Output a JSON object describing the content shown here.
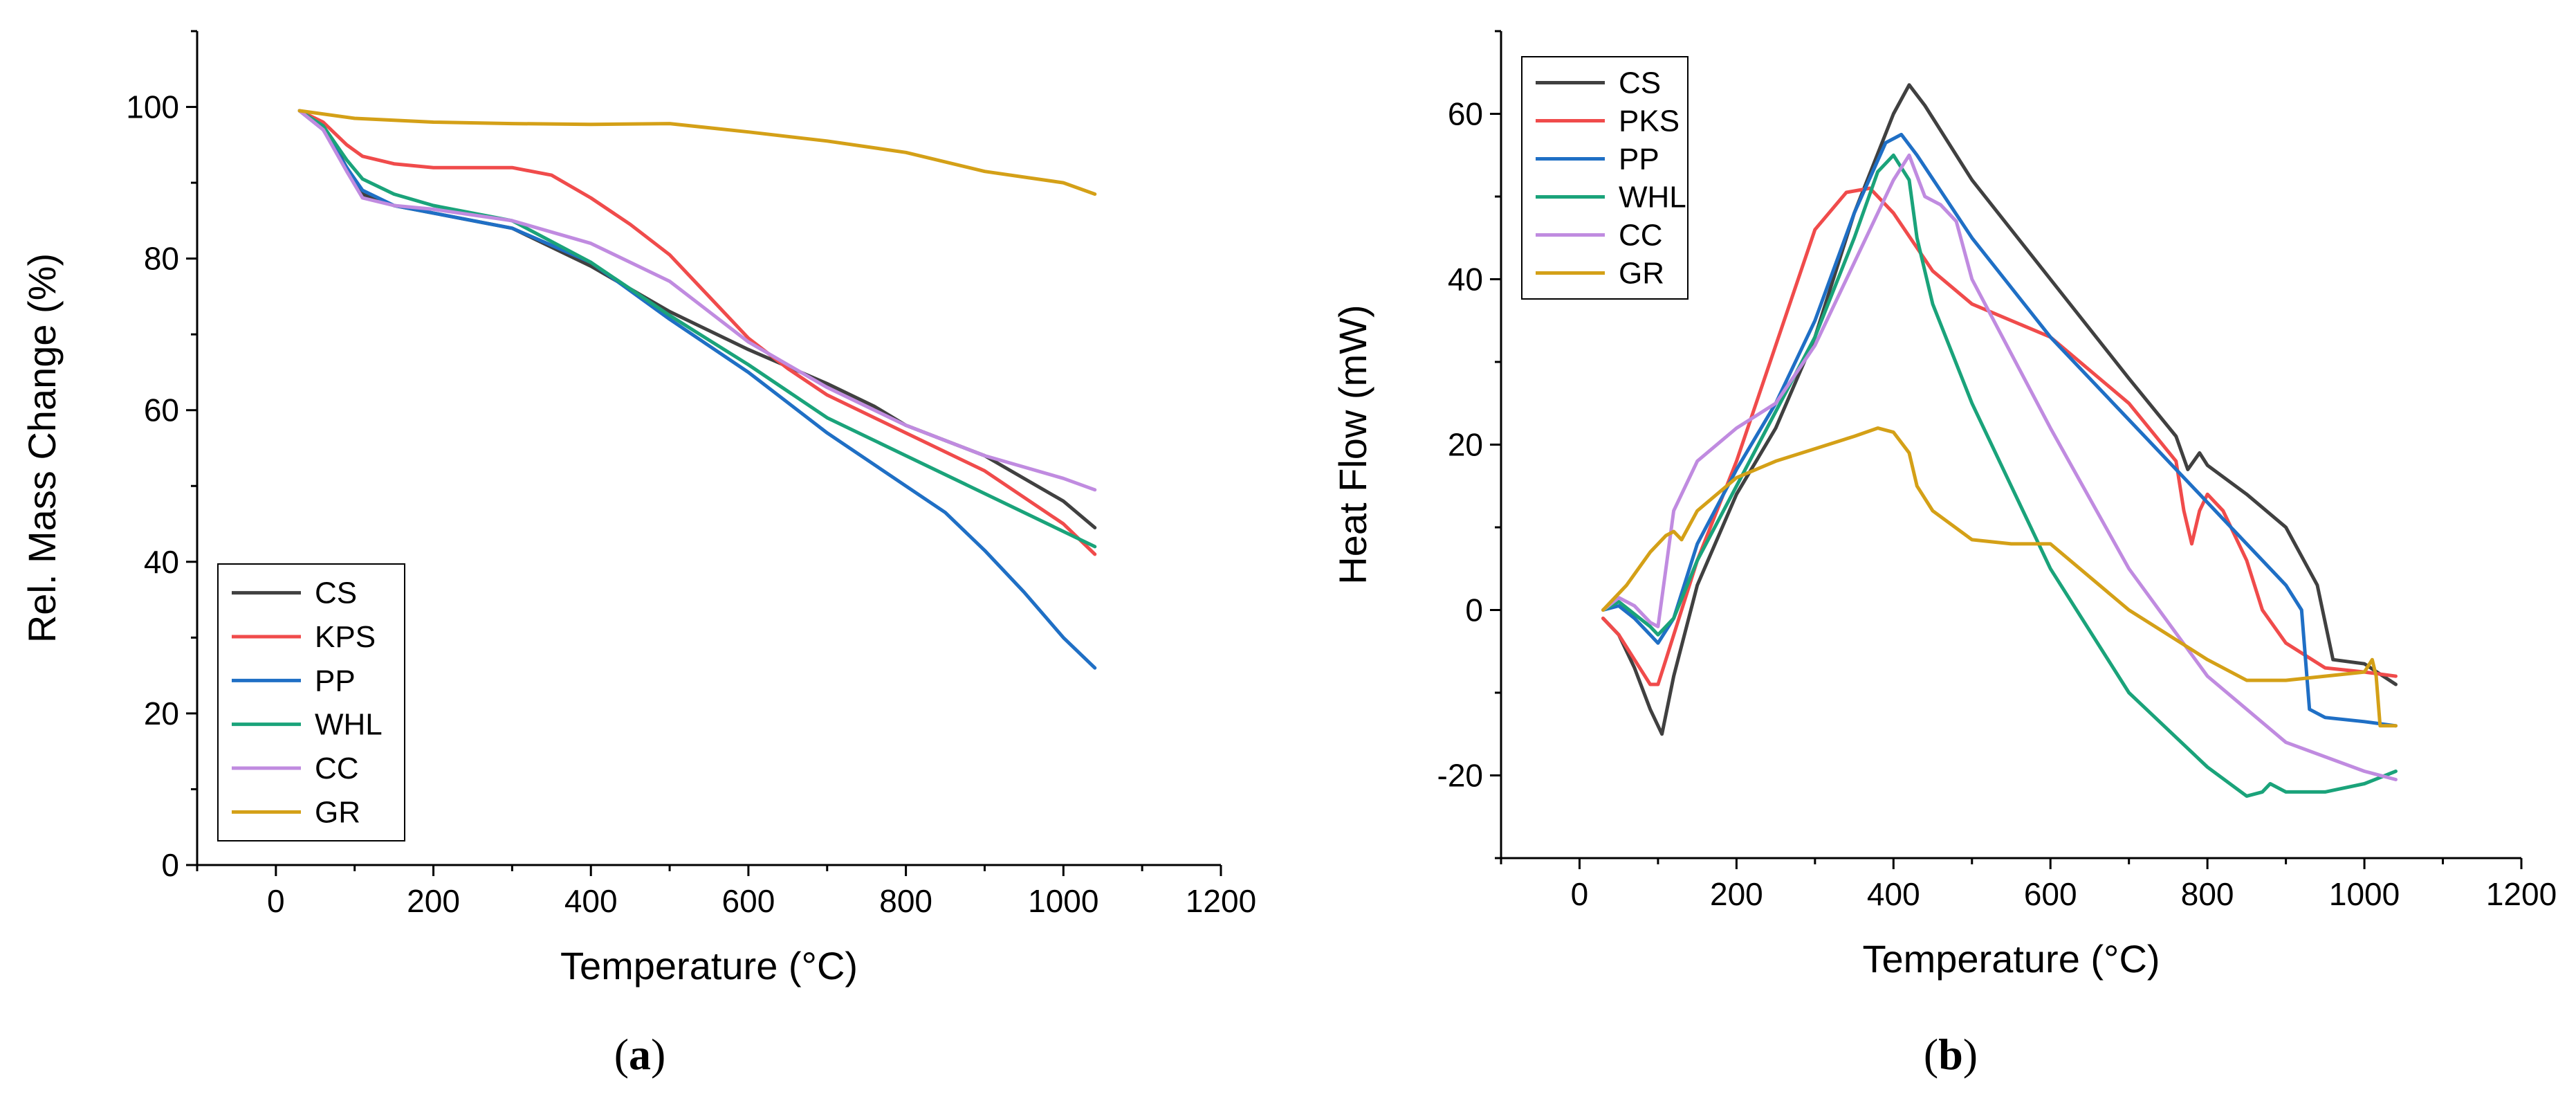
{
  "colors": {
    "CS": "#404040",
    "KPS": "#f04b4b",
    "PKS": "#f04b4b",
    "PP": "#1f6fc5",
    "WHL": "#1aa37a",
    "CC": "#c08be0",
    "GR": "#d4a017"
  },
  "chart_data": [
    {
      "type": "line",
      "panel_label": "a",
      "title": "",
      "xlabel": "Temperature (°C)",
      "ylabel": "Rel. Mass Change (%)",
      "xlim": [
        -100,
        1200
      ],
      "ylim": [
        0,
        110
      ],
      "xticks": [
        0,
        200,
        400,
        600,
        800,
        1000,
        1200
      ],
      "yticks": [
        0,
        20,
        40,
        60,
        80,
        100
      ],
      "legend": "bottom-left",
      "series": [
        {
          "name": "CS",
          "x": [
            30,
            60,
            90,
            110,
            150,
            200,
            300,
            400,
            500,
            600,
            700,
            760,
            800,
            900,
            1000,
            1040
          ],
          "y": [
            99.5,
            97.5,
            92,
            88.5,
            87,
            86,
            84,
            79,
            73,
            68,
            63.5,
            60.5,
            58,
            54,
            48,
            44.5
          ]
        },
        {
          "name": "KPS",
          "x": [
            30,
            60,
            90,
            110,
            150,
            200,
            300,
            350,
            400,
            450,
            500,
            550,
            600,
            650,
            700,
            800,
            900,
            1000,
            1040
          ],
          "y": [
            99.5,
            98,
            95,
            93.5,
            92.5,
            92,
            92,
            91,
            88,
            84.5,
            80.5,
            75,
            69.5,
            65.5,
            62,
            57,
            52,
            45,
            41
          ]
        },
        {
          "name": "PP",
          "x": [
            30,
            60,
            90,
            110,
            150,
            200,
            300,
            400,
            500,
            600,
            700,
            800,
            850,
            900,
            950,
            1000,
            1040
          ],
          "y": [
            99.5,
            97,
            92,
            89,
            87,
            86,
            84,
            79.5,
            72,
            65,
            57,
            50,
            46.5,
            41.5,
            36,
            30,
            26
          ]
        },
        {
          "name": "WHL",
          "x": [
            30,
            60,
            90,
            110,
            150,
            200,
            300,
            400,
            500,
            600,
            700,
            800,
            900,
            1000,
            1040
          ],
          "y": [
            99.5,
            97.5,
            93,
            90.5,
            88.5,
            87,
            85,
            79.5,
            72.5,
            66,
            59,
            54,
            49,
            44,
            42
          ]
        },
        {
          "name": "CC",
          "x": [
            30,
            60,
            90,
            110,
            150,
            200,
            300,
            400,
            500,
            600,
            700,
            800,
            900,
            1000,
            1040
          ],
          "y": [
            99.5,
            97,
            91.5,
            88,
            87,
            86.5,
            85,
            82,
            77,
            69,
            63,
            58,
            54,
            51,
            49.5
          ]
        },
        {
          "name": "GR",
          "x": [
            30,
            100,
            200,
            300,
            400,
            500,
            600,
            700,
            800,
            900,
            1000,
            1040
          ],
          "y": [
            99.5,
            98.5,
            98,
            97.8,
            97.7,
            97.8,
            96.7,
            95.5,
            94,
            91.5,
            90,
            88.5
          ]
        }
      ]
    },
    {
      "type": "line",
      "panel_label": "b",
      "title": "",
      "xlabel": "Temperature (°C)",
      "ylabel": "Heat Flow (mW)",
      "xlim": [
        -100,
        1200
      ],
      "ylim": [
        -30,
        70
      ],
      "xticks": [
        0,
        200,
        400,
        600,
        800,
        1000,
        1200
      ],
      "yticks": [
        -20,
        0,
        20,
        40,
        60
      ],
      "legend": "top-left",
      "series": [
        {
          "name": "CS",
          "x": [
            30,
            50,
            70,
            90,
            105,
            120,
            150,
            200,
            250,
            300,
            350,
            400,
            420,
            440,
            500,
            600,
            700,
            760,
            775,
            790,
            800,
            850,
            900,
            940,
            960,
            1000,
            1040
          ],
          "y": [
            -1,
            -3,
            -7,
            -12,
            -15,
            -8,
            3,
            14,
            22,
            33,
            48,
            60,
            63.5,
            61,
            52,
            40,
            28,
            21,
            17,
            19,
            17.5,
            14,
            10,
            3,
            -6,
            -6.5,
            -9
          ]
        },
        {
          "name": "PKS",
          "x": [
            30,
            50,
            70,
            90,
            100,
            110,
            130,
            150,
            200,
            250,
            300,
            340,
            370,
            400,
            450,
            500,
            600,
            700,
            760,
            770,
            780,
            790,
            800,
            820,
            850,
            870,
            900,
            950,
            1000,
            1040
          ],
          "y": [
            -1,
            -3,
            -6,
            -9,
            -9,
            -6,
            0,
            6,
            18,
            32,
            46,
            50.5,
            51,
            48,
            41,
            37,
            33,
            25,
            18,
            12,
            8,
            12,
            14,
            12,
            6,
            0,
            -4,
            -7,
            -7.5,
            -8
          ]
        },
        {
          "name": "PP",
          "x": [
            30,
            50,
            70,
            90,
            100,
            120,
            150,
            200,
            250,
            300,
            350,
            390,
            410,
            430,
            500,
            600,
            700,
            800,
            850,
            900,
            920,
            930,
            950,
            1000,
            1040
          ],
          "y": [
            0,
            0.5,
            -1,
            -3,
            -4,
            -1,
            8,
            17,
            25,
            35,
            48,
            56.5,
            57.5,
            55,
            45,
            33,
            23,
            13,
            8,
            3,
            0,
            -12,
            -13,
            -13.5,
            -14
          ]
        },
        {
          "name": "WHL",
          "x": [
            30,
            50,
            70,
            90,
            100,
            120,
            150,
            200,
            250,
            300,
            350,
            380,
            400,
            420,
            430,
            450,
            500,
            550,
            600,
            700,
            800,
            850,
            870,
            880,
            900,
            950,
            1000,
            1040
          ],
          "y": [
            0,
            1,
            -0.5,
            -2,
            -3,
            -1,
            6,
            15,
            24,
            33,
            45,
            53,
            55,
            52,
            45,
            37,
            25,
            15,
            5,
            -10,
            -19,
            -22.5,
            -22,
            -21,
            -22,
            -22,
            -21,
            -19.5
          ]
        },
        {
          "name": "CC",
          "x": [
            30,
            50,
            70,
            90,
            100,
            110,
            120,
            150,
            200,
            250,
            300,
            350,
            400,
            420,
            440,
            460,
            480,
            500,
            600,
            700,
            800,
            900,
            1000,
            1040
          ],
          "y": [
            0,
            1.5,
            0.5,
            -1.5,
            -2,
            5,
            12,
            18,
            22,
            25,
            32,
            42,
            52,
            55,
            50,
            49,
            47,
            40,
            22,
            5,
            -8,
            -16,
            -19.5,
            -20.5
          ]
        },
        {
          "name": "GR",
          "x": [
            30,
            60,
            90,
            110,
            120,
            130,
            150,
            200,
            250,
            300,
            350,
            380,
            400,
            420,
            430,
            450,
            500,
            550,
            600,
            700,
            800,
            850,
            900,
            950,
            1000,
            1010,
            1015,
            1020,
            1040
          ],
          "y": [
            0,
            3,
            7,
            9,
            9.5,
            8.5,
            12,
            16,
            18,
            19.5,
            21,
            22,
            21.5,
            19,
            15,
            12,
            8.5,
            8,
            8,
            0,
            -6,
            -8.5,
            -8.5,
            -8,
            -7.5,
            -6,
            -8,
            -14,
            -14
          ]
        }
      ]
    }
  ]
}
